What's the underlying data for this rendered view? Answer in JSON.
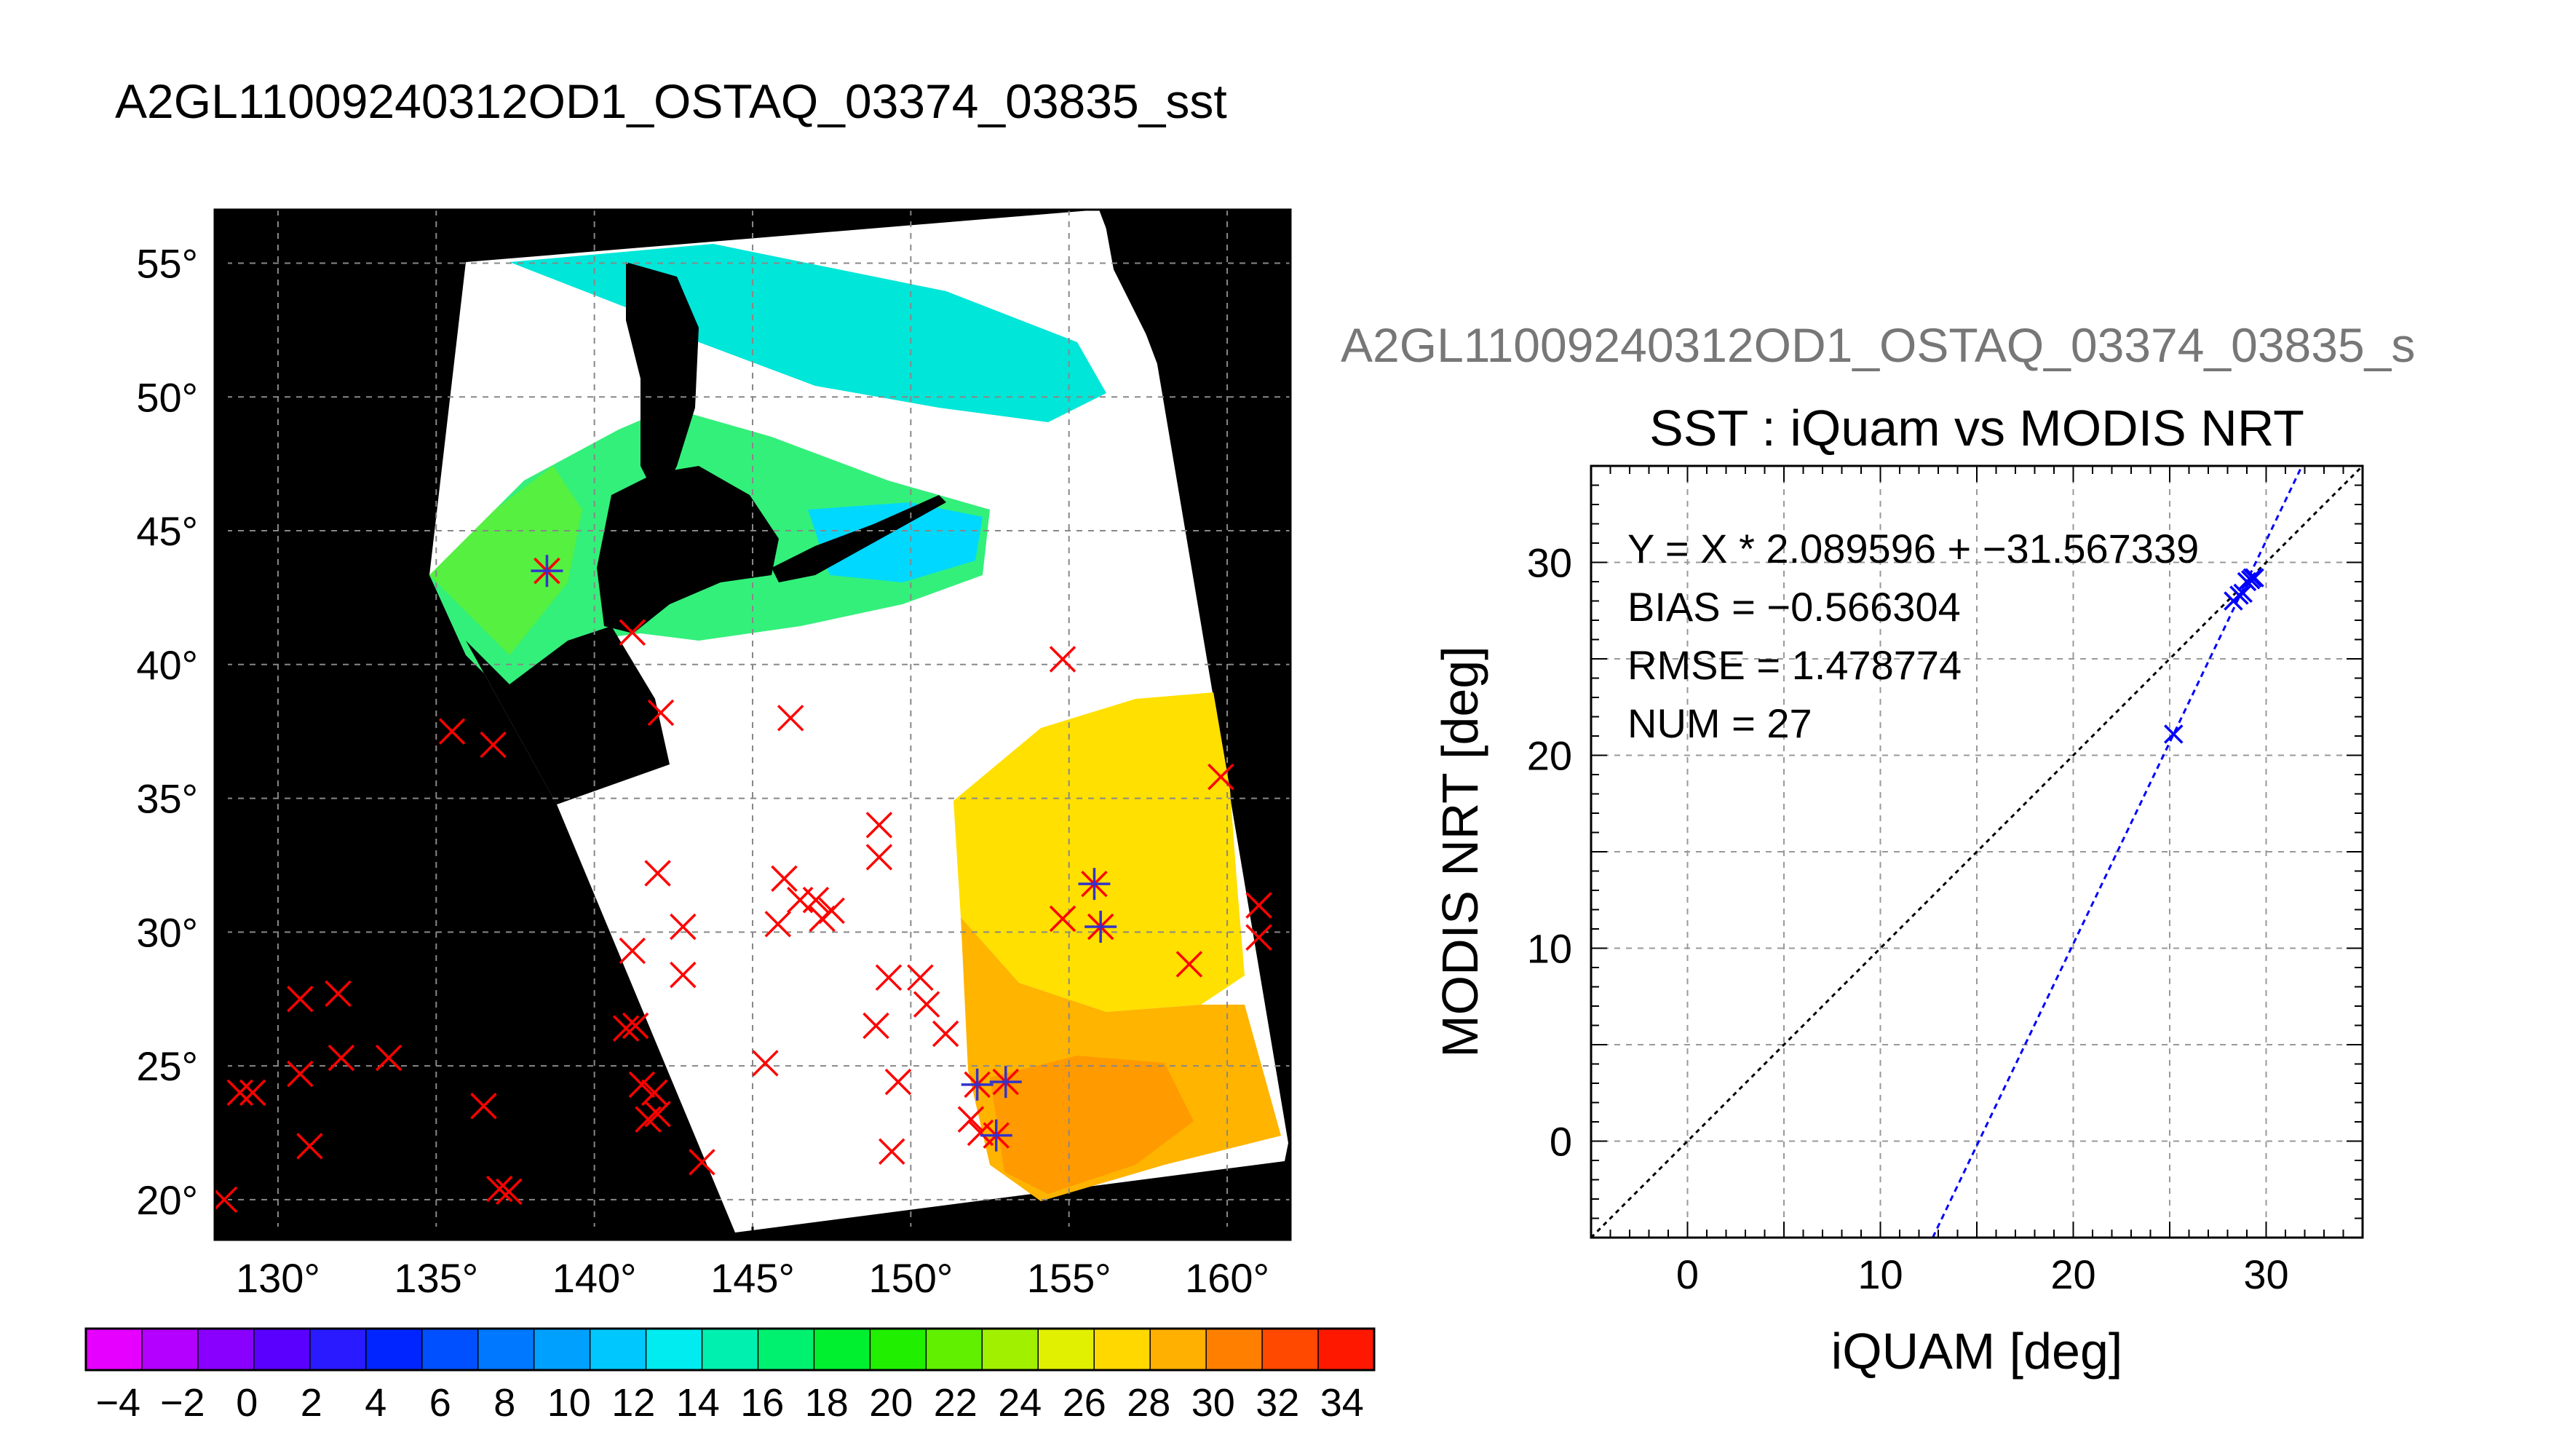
{
  "page": {
    "main_title": "A2GL11009240312OD1_OSTAQ_03374_03835_sst",
    "secondary_title": "A2GL11009240312OD1_OSTAQ_03374_03835_s"
  },
  "colors": {
    "land": "#000000",
    "no_data": "#ffffff",
    "iquam_marker": "#ff0000",
    "matched_marker": "#3333cc",
    "fit_line": "#0000ff",
    "identity_line": "#000000"
  },
  "chart_data": [
    {
      "type": "heatmap",
      "title": "",
      "lon_ticks": [
        "130°",
        "135°",
        "140°",
        "145°",
        "150°",
        "155°",
        "160°"
      ],
      "lat_ticks": [
        "55°",
        "50°",
        "45°",
        "40°",
        "35°",
        "30°",
        "25°",
        "20°"
      ],
      "xlim": [
        128,
        162
      ],
      "ylim": [
        18.5,
        57
      ],
      "grid": true,
      "colorbar": {
        "vmin": -5,
        "vmax": 35,
        "tick_labels": [
          "-4",
          "-2",
          "0",
          "2",
          "4",
          "6",
          "8",
          "10",
          "12",
          "14",
          "16",
          "18",
          "20",
          "22",
          "24",
          "26",
          "28",
          "30",
          "32",
          "34"
        ],
        "colors": [
          "#e600ff",
          "#b400ff",
          "#8a00ff",
          "#5a00ff",
          "#2a1aff",
          "#0025ff",
          "#0050ff",
          "#0078ff",
          "#00a0ff",
          "#00c8ff",
          "#00ecf0",
          "#00f0b0",
          "#00f070",
          "#00f030",
          "#20f000",
          "#60f000",
          "#a0f000",
          "#e0f000",
          "#ffd800",
          "#ffb000",
          "#ff8000",
          "#ff4800",
          "#ff1800"
        ]
      },
      "iquam_points": [
        {
          "lon": 138.5,
          "lat": 43.5
        },
        {
          "lon": 141.2,
          "lat": 41.2
        },
        {
          "lon": 154.8,
          "lat": 40.2
        },
        {
          "lon": 142.1,
          "lat": 38.2
        },
        {
          "lon": 146.2,
          "lat": 38.0
        },
        {
          "lon": 135.5,
          "lat": 37.5
        },
        {
          "lon": 136.8,
          "lat": 37.0
        },
        {
          "lon": 159.8,
          "lat": 35.8
        },
        {
          "lon": 149.0,
          "lat": 34.0
        },
        {
          "lon": 149.0,
          "lat": 32.8
        },
        {
          "lon": 142.0,
          "lat": 32.2
        },
        {
          "lon": 146.0,
          "lat": 32.0
        },
        {
          "lon": 146.5,
          "lat": 31.2
        },
        {
          "lon": 147.0,
          "lat": 31.2
        },
        {
          "lon": 147.5,
          "lat": 30.8
        },
        {
          "lon": 161.0,
          "lat": 31.0
        },
        {
          "lon": 161.0,
          "lat": 29.8
        },
        {
          "lon": 142.8,
          "lat": 30.2
        },
        {
          "lon": 145.8,
          "lat": 30.3
        },
        {
          "lon": 147.2,
          "lat": 30.5
        },
        {
          "lon": 154.8,
          "lat": 30.5
        },
        {
          "lon": 141.2,
          "lat": 29.3
        },
        {
          "lon": 142.8,
          "lat": 28.4
        },
        {
          "lon": 150.3,
          "lat": 28.3
        },
        {
          "lon": 149.3,
          "lat": 28.3
        },
        {
          "lon": 158.8,
          "lat": 28.8
        },
        {
          "lon": 130.7,
          "lat": 27.5
        },
        {
          "lon": 131.9,
          "lat": 27.7
        },
        {
          "lon": 150.5,
          "lat": 27.3
        },
        {
          "lon": 141.0,
          "lat": 26.4
        },
        {
          "lon": 141.3,
          "lat": 26.5
        },
        {
          "lon": 148.9,
          "lat": 26.5
        },
        {
          "lon": 151.1,
          "lat": 26.2
        },
        {
          "lon": 132.0,
          "lat": 25.3
        },
        {
          "lon": 133.5,
          "lat": 25.3
        },
        {
          "lon": 130.7,
          "lat": 24.7
        },
        {
          "lon": 145.4,
          "lat": 25.1
        },
        {
          "lon": 141.5,
          "lat": 24.3
        },
        {
          "lon": 141.9,
          "lat": 24.0
        },
        {
          "lon": 149.6,
          "lat": 24.4
        },
        {
          "lon": 128.8,
          "lat": 24.0
        },
        {
          "lon": 129.2,
          "lat": 24.0
        },
        {
          "lon": 136.5,
          "lat": 23.5
        },
        {
          "lon": 141.7,
          "lat": 23.0
        },
        {
          "lon": 142.0,
          "lat": 23.2
        },
        {
          "lon": 151.9,
          "lat": 23.0
        },
        {
          "lon": 131.0,
          "lat": 22.0
        },
        {
          "lon": 149.4,
          "lat": 21.8
        },
        {
          "lon": 143.4,
          "lat": 21.4
        },
        {
          "lon": 137.0,
          "lat": 20.4
        },
        {
          "lon": 137.3,
          "lat": 20.3
        },
        {
          "lon": 128.3,
          "lat": 20.0
        },
        {
          "lon": 152.2,
          "lat": 22.5
        }
      ],
      "matched_points": [
        {
          "lon": 138.5,
          "lat": 43.5
        },
        {
          "lon": 155.8,
          "lat": 31.8
        },
        {
          "lon": 156.0,
          "lat": 30.2
        },
        {
          "lon": 152.1,
          "lat": 24.3
        },
        {
          "lon": 153.0,
          "lat": 24.4
        },
        {
          "lon": 152.7,
          "lat": 22.4
        }
      ]
    },
    {
      "type": "scatter",
      "title": "SST : iQuam vs MODIS NRT",
      "xlabel": "iQUAM [deg]",
      "ylabel": "MODIS NRT [deg]",
      "xlim": [
        -5,
        35
      ],
      "ylim": [
        -5,
        35
      ],
      "x_ticks": [
        "0",
        "10",
        "20",
        "30"
      ],
      "y_ticks": [
        "0",
        "10",
        "20",
        "30"
      ],
      "grid": true,
      "stats": [
        "Y = X * 2.089596 + −31.567339",
        "BIAS = −0.566304",
        "RMSE = 1.478774",
        "NUM = 27"
      ],
      "fit": {
        "slope": 2.089596,
        "intercept": -31.567339
      },
      "points": [
        {
          "x": 25.2,
          "y": 21.1
        },
        {
          "x": 28.3,
          "y": 28.0
        },
        {
          "x": 28.6,
          "y": 28.3
        },
        {
          "x": 28.8,
          "y": 28.4
        },
        {
          "x": 29.0,
          "y": 29.0
        },
        {
          "x": 29.2,
          "y": 29.1
        },
        {
          "x": 29.3,
          "y": 29.2
        },
        {
          "x": 29.4,
          "y": 29.2
        }
      ]
    }
  ]
}
